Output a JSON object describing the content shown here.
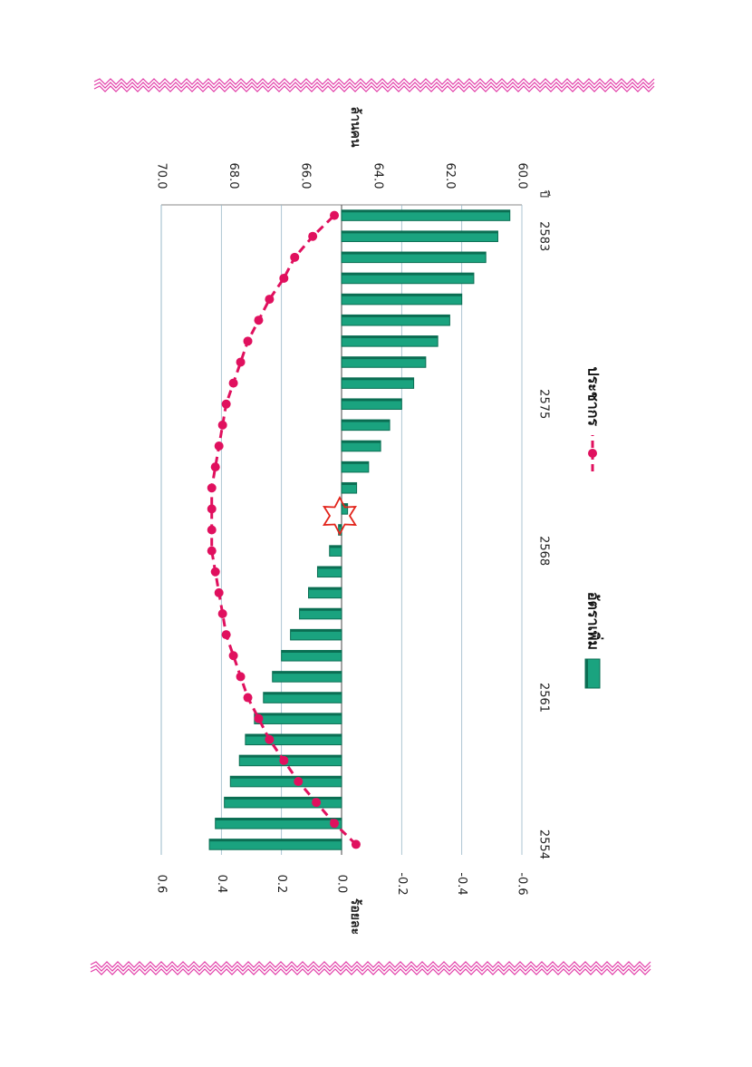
{
  "chart_data": {
    "type": "bar",
    "orientation": "rotated-90-clockwise",
    "x": [
      2554,
      2555,
      2556,
      2557,
      2558,
      2559,
      2560,
      2561,
      2562,
      2563,
      2564,
      2565,
      2566,
      2567,
      2568,
      2569,
      2570,
      2571,
      2572,
      2573,
      2574,
      2575,
      2576,
      2577,
      2578,
      2579,
      2580,
      2581,
      2582,
      2583,
      2584
    ],
    "x_tick_labels": [
      "2554",
      "2561",
      "2568",
      "2575",
      "2583"
    ],
    "xlabel": "ปี",
    "series": [
      {
        "name": "อัตราเพิ่ม",
        "type": "bar",
        "axis": "left",
        "color": "#1aa37f",
        "values": [
          0.44,
          0.42,
          0.39,
          0.37,
          0.34,
          0.32,
          0.29,
          0.26,
          0.23,
          0.2,
          0.17,
          0.14,
          0.11,
          0.08,
          0.04,
          0.01,
          -0.02,
          -0.05,
          -0.09,
          -0.13,
          -0.16,
          -0.2,
          -0.24,
          -0.28,
          -0.32,
          -0.36,
          -0.4,
          -0.44,
          -0.48,
          -0.52,
          -0.56
        ]
      },
      {
        "name": "ประชากร",
        "type": "line",
        "axis": "right",
        "color": "#e0105e",
        "values": [
          64.6,
          65.2,
          65.7,
          66.2,
          66.6,
          67.0,
          67.3,
          67.6,
          67.8,
          68.0,
          68.2,
          68.3,
          68.4,
          68.5,
          68.6,
          68.6,
          68.6,
          68.6,
          68.5,
          68.4,
          68.3,
          68.2,
          68.0,
          67.8,
          67.6,
          67.3,
          67.0,
          66.6,
          66.3,
          65.8,
          65.2
        ]
      }
    ],
    "y_left": {
      "label": "ร้อยละ",
      "ylim": [
        -0.6,
        0.6
      ],
      "ticks": [
        "0.6",
        "0.4",
        "0.2",
        "0.0",
        "-0.2",
        "-0.4",
        "-0.6"
      ]
    },
    "y_right": {
      "label": "ล้านคน",
      "ylim": [
        60.0,
        70.0
      ],
      "ticks": [
        "70.0",
        "68.0",
        "66.0",
        "64.0",
        "62.0",
        "60.0"
      ]
    },
    "grid": true,
    "legend_position": "bottom",
    "marker": "star"
  },
  "colors": {
    "border": "#e23da8",
    "bar": "#1aa37f",
    "bar_dark": "#0b6e53",
    "line": "#e0105e",
    "grid": "#9ab8c8",
    "star": "#e2231a"
  }
}
